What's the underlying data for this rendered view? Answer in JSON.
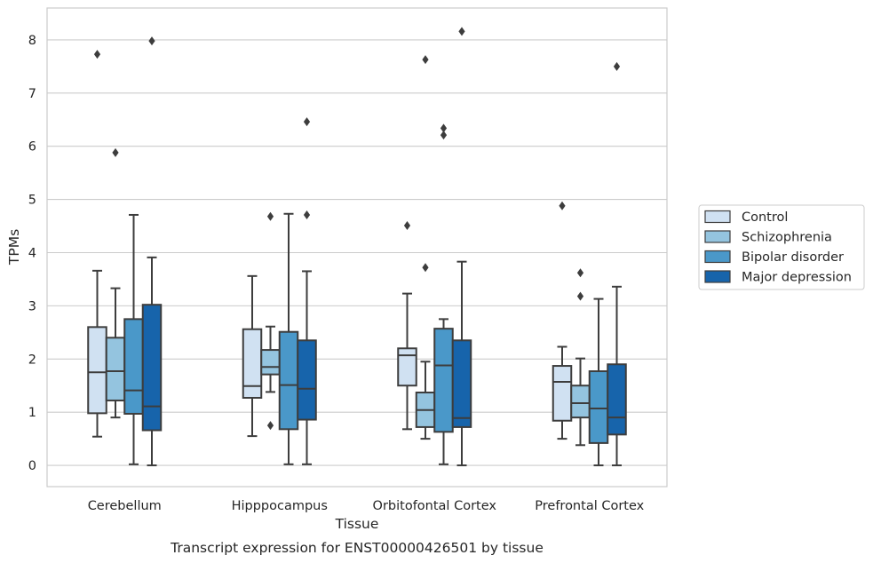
{
  "chart_data": {
    "type": "box",
    "title": "",
    "caption": "Transcript expression for ENST00000426501 by tissue",
    "xlabel": "Tissue",
    "ylabel": "TPMs",
    "ylim": [
      -0.4,
      8.6
    ],
    "yticks": [
      0,
      1,
      2,
      3,
      4,
      5,
      6,
      7,
      8
    ],
    "grid": true,
    "legend_position": "right",
    "categories": [
      "Cerebellum",
      "Hipppocampus",
      "Orbitofontal Cortex",
      "Prefrontal Cortex"
    ],
    "series": [
      {
        "name": "Control",
        "color": "#d0e1f2",
        "boxes": [
          {
            "whisker_low": 0.54,
            "q1": 0.98,
            "median": 1.75,
            "q3": 2.6,
            "whisker_high": 3.66,
            "outliers": [
              7.73
            ]
          },
          {
            "whisker_low": 0.55,
            "q1": 1.27,
            "median": 1.49,
            "q3": 2.56,
            "whisker_high": 3.56,
            "outliers": []
          },
          {
            "whisker_low": 0.68,
            "q1": 1.5,
            "median": 2.07,
            "q3": 2.2,
            "whisker_high": 3.23,
            "outliers": [
              4.51
            ]
          },
          {
            "whisker_low": 0.5,
            "q1": 0.84,
            "median": 1.57,
            "q3": 1.87,
            "whisker_high": 2.23,
            "outliers": [
              4.88
            ]
          }
        ]
      },
      {
        "name": "Schizophrenia",
        "color": "#94c4df",
        "boxes": [
          {
            "whisker_low": 0.9,
            "q1": 1.22,
            "median": 1.77,
            "q3": 2.4,
            "whisker_high": 3.33,
            "outliers": [
              5.88
            ]
          },
          {
            "whisker_low": 1.38,
            "q1": 1.71,
            "median": 1.85,
            "q3": 2.17,
            "whisker_high": 2.61,
            "outliers": [
              4.68,
              0.75
            ]
          },
          {
            "whisker_low": 0.5,
            "q1": 0.72,
            "median": 1.04,
            "q3": 1.37,
            "whisker_high": 1.95,
            "outliers": [
              7.63,
              3.72
            ]
          },
          {
            "whisker_low": 0.38,
            "q1": 0.9,
            "median": 1.17,
            "q3": 1.5,
            "whisker_high": 2.01,
            "outliers": [
              3.62,
              3.18
            ]
          }
        ]
      },
      {
        "name": "Bipolar disorder",
        "color": "#4a98c9",
        "boxes": [
          {
            "whisker_low": 0.02,
            "q1": 0.97,
            "median": 1.41,
            "q3": 2.75,
            "whisker_high": 4.71,
            "outliers": []
          },
          {
            "whisker_low": 0.02,
            "q1": 0.68,
            "median": 1.51,
            "q3": 2.51,
            "whisker_high": 4.73,
            "outliers": []
          },
          {
            "whisker_low": 0.02,
            "q1": 0.63,
            "median": 1.88,
            "q3": 2.57,
            "whisker_high": 2.75,
            "outliers": [
              6.34,
              6.21
            ]
          },
          {
            "whisker_low": 0.0,
            "q1": 0.42,
            "median": 1.07,
            "q3": 1.77,
            "whisker_high": 3.13,
            "outliers": []
          }
        ]
      },
      {
        "name": "Major depression",
        "color": "#1764ab",
        "boxes": [
          {
            "whisker_low": 0.0,
            "q1": 0.66,
            "median": 1.11,
            "q3": 3.02,
            "whisker_high": 3.91,
            "outliers": [
              7.98
            ]
          },
          {
            "whisker_low": 0.02,
            "q1": 0.86,
            "median": 1.44,
            "q3": 2.35,
            "whisker_high": 3.65,
            "outliers": [
              6.46,
              4.71
            ]
          },
          {
            "whisker_low": 0.0,
            "q1": 0.72,
            "median": 0.89,
            "q3": 2.35,
            "whisker_high": 3.83,
            "outliers": [
              8.16
            ]
          },
          {
            "whisker_low": 0.0,
            "q1": 0.58,
            "median": 0.9,
            "q3": 1.9,
            "whisker_high": 3.36,
            "outliers": [
              7.5
            ]
          }
        ]
      }
    ]
  }
}
